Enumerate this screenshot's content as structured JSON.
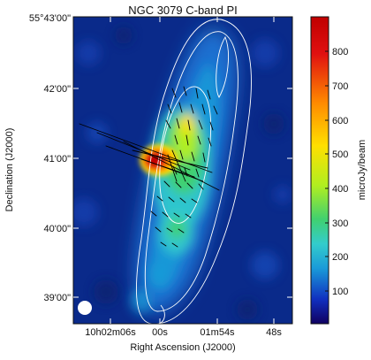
{
  "figure": {
    "title": "NGC 3079   C-band   PI",
    "x_axis_label": "Right Ascension (J2000)",
    "y_axis_label": "Declination (J2000)",
    "x_ticks": [
      "10h02m06s",
      "00s",
      "01m54s",
      "48s"
    ],
    "y_ticks": [
      "55°43'00\"",
      "42'00\"",
      "41'00\"",
      "40'00\"",
      "39'00\""
    ]
  },
  "colorbar": {
    "label": "microJy/beam",
    "ticks": [
      "800",
      "700",
      "600",
      "500",
      "400",
      "300",
      "200",
      "100"
    ],
    "min": 0,
    "max": 880,
    "colors": [
      "#100060",
      "#1030c0",
      "#1a9ad8",
      "#33cccc",
      "#40d070",
      "#b0ee20",
      "#ffe000",
      "#ff8a00",
      "#e01010",
      "#c00000"
    ]
  },
  "image": {
    "background_color": "#0a2a8a",
    "contour_color": "#ffffff",
    "vector_color": "#000000",
    "beam_color": "#ffffff"
  }
}
